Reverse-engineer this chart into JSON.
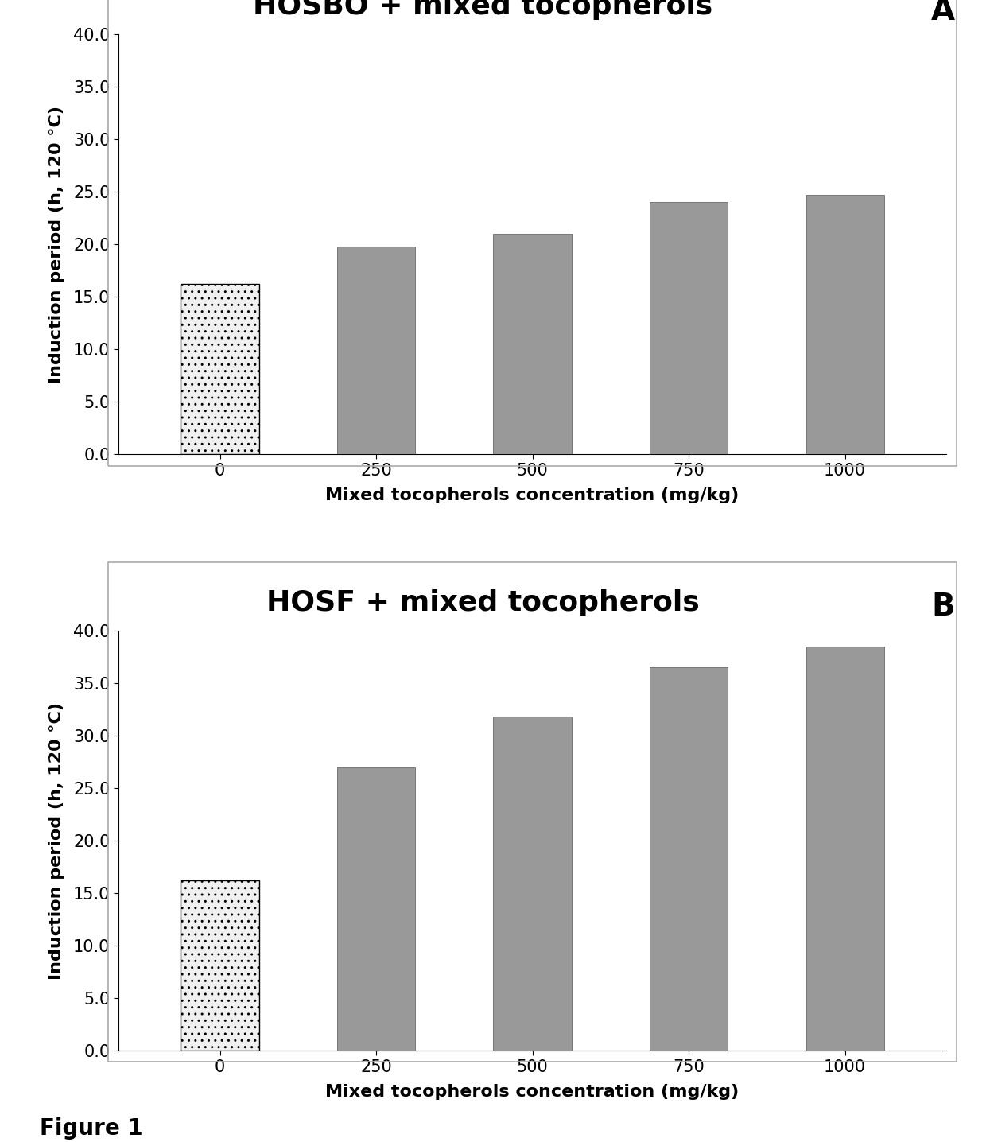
{
  "panel_A": {
    "title": "HOSBO + mixed tocopherols",
    "label": "A",
    "categories": [
      "0",
      "250",
      "500",
      "750",
      "1000"
    ],
    "values": [
      16.2,
      19.8,
      21.0,
      24.0,
      24.7
    ],
    "ylim": [
      0,
      40.0
    ],
    "yticks": [
      0.0,
      5.0,
      10.0,
      15.0,
      20.0,
      25.0,
      30.0,
      35.0,
      40.0
    ],
    "xlabel": "Mixed tocopherols concentration (mg/kg)",
    "ylabel": "Induction period (h, 120 °C)"
  },
  "panel_B": {
    "title": "HOSF + mixed tocopherols",
    "label": "B",
    "categories": [
      "0",
      "250",
      "500",
      "750",
      "1000"
    ],
    "values": [
      16.2,
      27.0,
      31.8,
      36.5,
      38.5
    ],
    "ylim": [
      0,
      40.0
    ],
    "yticks": [
      0.0,
      5.0,
      10.0,
      15.0,
      20.0,
      25.0,
      30.0,
      35.0,
      40.0
    ],
    "xlabel": "Mixed tocopherols concentration (mg/kg)",
    "ylabel": "Induction period (h, 120 °C)"
  },
  "figure_label": "Figure 1",
  "background_color": "#ffffff",
  "bar_color_0": "#f0f0f0",
  "bar_color_rest": "#999999",
  "bar_hatch_0": "..",
  "border_color": "#aaaaaa",
  "title_fontsize": 26,
  "label_fontsize": 28,
  "axis_label_fontsize": 16,
  "tick_fontsize": 15,
  "figure_label_fontsize": 20,
  "bar_width": 0.5
}
